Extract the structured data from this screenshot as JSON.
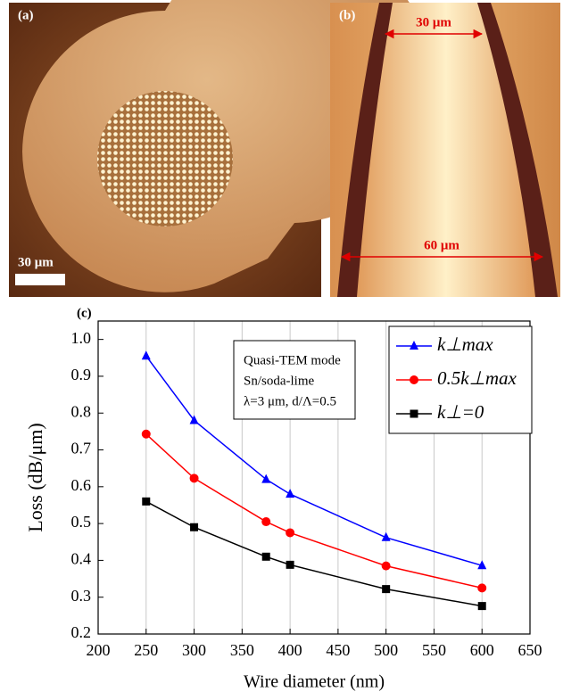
{
  "panels": {
    "a": {
      "label": "(a)",
      "scale_bar": "30 μm"
    },
    "b": {
      "label": "(b)",
      "top_width": "30 μm",
      "bottom_width": "60 μm"
    }
  },
  "chart_data": {
    "type": "line",
    "panel_label": "(c)",
    "x_label": "Wire diameter (nm)",
    "y_label": "Loss (dB/μm)",
    "annotation": [
      "Quasi-TEM mode",
      "Sn/soda-lime",
      "λ=3 μm, d/Λ=0.5"
    ],
    "x": [
      250,
      300,
      375,
      400,
      500,
      600
    ],
    "series": [
      {
        "name": "k⊥max",
        "color": "#0000ff",
        "marker": "triangle",
        "values": [
          0.955,
          0.78,
          0.62,
          0.58,
          0.462,
          0.386
        ]
      },
      {
        "name": "0.5k⊥max",
        "color": "#ff0000",
        "marker": "circle",
        "values": [
          0.743,
          0.623,
          0.505,
          0.475,
          0.385,
          0.325
        ]
      },
      {
        "name": "k⊥=0",
        "color": "#000000",
        "marker": "square",
        "values": [
          0.56,
          0.49,
          0.41,
          0.388,
          0.322,
          0.276
        ]
      }
    ],
    "xlim": [
      200,
      650
    ],
    "ylim": [
      0.2,
      1.05
    ],
    "xticks": [
      200,
      250,
      300,
      350,
      400,
      450,
      500,
      550,
      600,
      650
    ],
    "yticks": [
      0.2,
      0.3,
      0.4,
      0.5,
      0.6,
      0.7,
      0.8,
      0.9,
      {
        "value": 1,
        "label": "1.0"
      }
    ],
    "grid": true,
    "legend": "upper right"
  }
}
